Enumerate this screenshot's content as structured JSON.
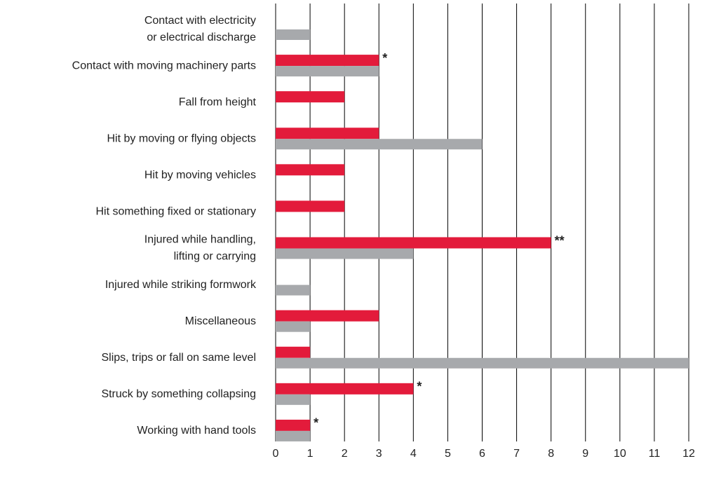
{
  "chart_data": {
    "type": "barh",
    "categories": [
      "Contact with electricity\nor electrical discharge",
      "Contact with moving machinery parts",
      "Fall from height",
      "Hit by moving or flying objects",
      "Hit by moving vehicles",
      "Hit something fixed or stationary",
      "Injured while handling,\nlifting or carrying",
      "Injured while striking formwork",
      "Miscellaneous",
      "Slips, trips or fall on same level",
      "Struck by something collapsing",
      "Working with hand tools"
    ],
    "series": [
      {
        "color": "#e31b3b",
        "values": [
          0,
          3,
          2,
          3,
          2,
          2,
          8,
          0,
          3,
          1,
          4,
          1
        ],
        "annotations": [
          null,
          "*",
          null,
          null,
          null,
          null,
          "**",
          null,
          null,
          null,
          "*",
          "*"
        ]
      },
      {
        "color": "#a7a9ac",
        "values": [
          1,
          3,
          0,
          6,
          0,
          0,
          4,
          1,
          1,
          12,
          1,
          1
        ]
      }
    ],
    "xlim": [
      0,
      12
    ],
    "xticks": [
      0,
      1,
      2,
      3,
      4,
      5,
      6,
      7,
      8,
      9,
      10,
      11,
      12
    ],
    "grid": true
  }
}
